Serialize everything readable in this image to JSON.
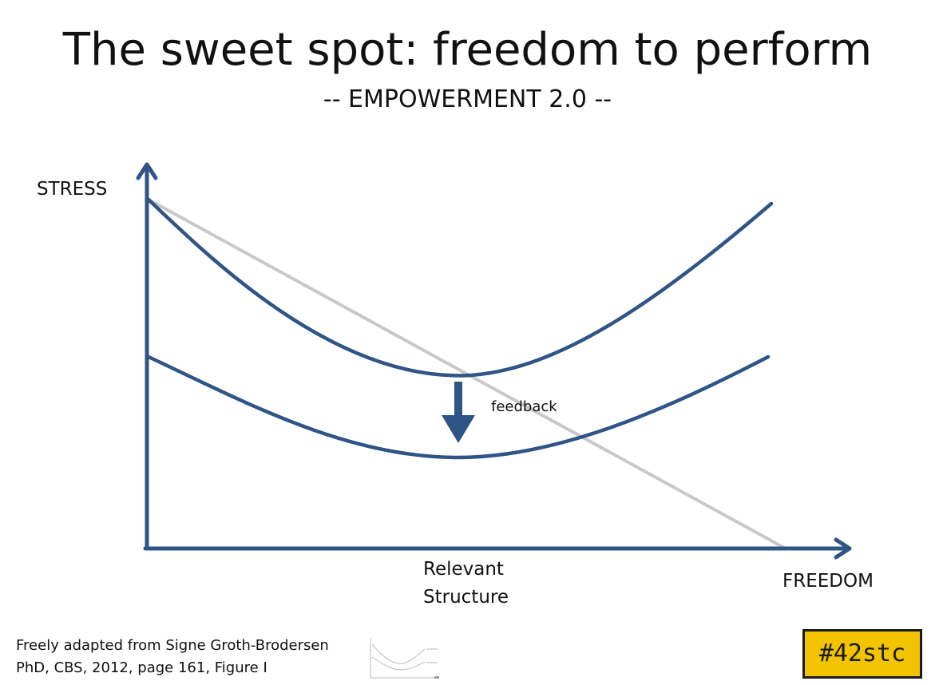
{
  "slide": {
    "title": "The sweet spot: freedom to perform",
    "subtitle": "-- EMPOWERMENT 2.0 --"
  },
  "diagram": {
    "y_axis_label": "STRESS",
    "x_axis_label": "FREEDOM",
    "structure_label_line1": "Relevant",
    "structure_label_line2": "Structure",
    "feedback_label": "feedback",
    "colors": {
      "curve": "#2f5486",
      "axis": "#2f5486",
      "diagonal": "#c8c8c8",
      "arrow": "#2f5486"
    }
  },
  "footer": {
    "credit_line1": "Freely adapted from Signe Groth-Brodersen",
    "credit_line2": "PhD, CBS, 2012, page 161, Figure I"
  },
  "badge": {
    "text": "#42stc",
    "color": "#f2c400"
  }
}
